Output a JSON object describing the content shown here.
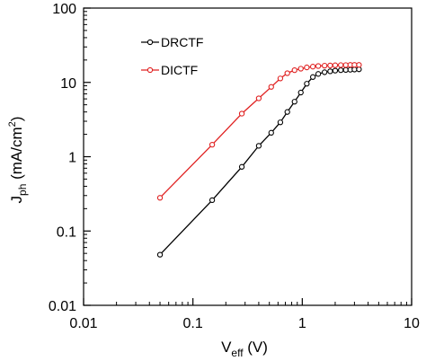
{
  "chart_data": {
    "type": "line",
    "title": "",
    "xlabel": "V",
    "xlabel_sub": "eff",
    "xlabel_unit": " (V)",
    "ylabel": "J",
    "ylabel_sub": "ph",
    "ylabel_unit": " (mA/cm",
    "ylabel_sup": "2",
    "ylabel_close": ")",
    "x_scale": "log",
    "y_scale": "log",
    "xlim": [
      0.01,
      10
    ],
    "ylim": [
      0.01,
      100
    ],
    "x_ticks": [
      0.01,
      0.1,
      1,
      10
    ],
    "x_tick_labels": [
      "0.01",
      "0.1",
      "1",
      "10"
    ],
    "y_ticks": [
      0.01,
      0.1,
      1,
      10,
      100
    ],
    "y_tick_labels": [
      "0.01",
      "0.1",
      "1",
      "10",
      "100"
    ],
    "grid": false,
    "legend_position": "top-left",
    "series": [
      {
        "name": "DRCTF",
        "color": "#000000",
        "marker": "open-circle",
        "x": [
          0.05,
          0.15,
          0.28,
          0.4,
          0.52,
          0.63,
          0.73,
          0.85,
          0.97,
          1.1,
          1.25,
          1.4,
          1.6,
          1.8,
          2.0,
          2.25,
          2.5,
          2.75,
          3.0,
          3.3
        ],
        "y": [
          0.048,
          0.26,
          0.73,
          1.4,
          2.1,
          2.9,
          4.0,
          5.5,
          7.3,
          9.6,
          11.8,
          13.0,
          13.7,
          14.1,
          14.4,
          14.6,
          14.7,
          14.8,
          14.9,
          15.0
        ]
      },
      {
        "name": "DICTF",
        "color": "#e02020",
        "marker": "open-circle",
        "x": [
          0.05,
          0.15,
          0.28,
          0.4,
          0.52,
          0.63,
          0.73,
          0.85,
          0.97,
          1.1,
          1.25,
          1.4,
          1.6,
          1.8,
          2.0,
          2.25,
          2.5,
          2.75,
          3.0,
          3.3
        ],
        "y": [
          0.28,
          1.45,
          3.8,
          6.1,
          8.7,
          11.3,
          13.3,
          14.6,
          15.3,
          15.9,
          16.3,
          16.6,
          16.8,
          16.9,
          17.0,
          17.1,
          17.1,
          17.2,
          17.2,
          17.2
        ]
      }
    ]
  }
}
